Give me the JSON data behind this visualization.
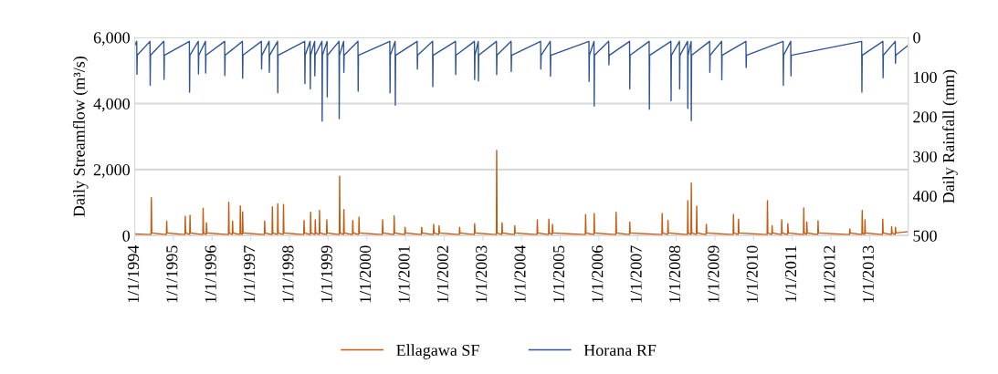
{
  "chart_data": {
    "type": "line",
    "xlabel": null,
    "ylabel": "Daily Streamflow (m³/s)",
    "y2label": "Daily Rainfall (mm)",
    "xlim": [
      "1994-01-01",
      "2013-12-31"
    ],
    "xticks": [
      {
        "value": "1994-01-01",
        "label": "1/1/1994"
      },
      {
        "value": "1995-01-01",
        "label": "1/1/1995"
      },
      {
        "value": "1996-01-01",
        "label": "1/1/1996"
      },
      {
        "value": "1997-01-01",
        "label": "1/1/1997"
      },
      {
        "value": "1998-01-01",
        "label": "1/1/1998"
      },
      {
        "value": "1999-01-01",
        "label": "1/1/1999"
      },
      {
        "value": "2000-01-01",
        "label": "1/1/2000"
      },
      {
        "value": "2001-01-01",
        "label": "1/1/2001"
      },
      {
        "value": "2002-01-01",
        "label": "1/1/2002"
      },
      {
        "value": "2003-01-01",
        "label": "1/1/2003"
      },
      {
        "value": "2004-01-01",
        "label": "1/1/2004"
      },
      {
        "value": "2005-01-01",
        "label": "1/1/2005"
      },
      {
        "value": "2006-01-01",
        "label": "1/1/2006"
      },
      {
        "value": "2007-01-01",
        "label": "1/1/2007"
      },
      {
        "value": "2008-01-01",
        "label": "1/1/2008"
      },
      {
        "value": "2009-01-01",
        "label": "1/1/2009"
      },
      {
        "value": "2010-01-01",
        "label": "1/1/2010"
      },
      {
        "value": "2011-01-01",
        "label": "1/1/2011"
      },
      {
        "value": "2012-01-01",
        "label": "1/1/2012"
      },
      {
        "value": "2013-01-01",
        "label": "1/1/2013"
      }
    ],
    "ylim": [
      0,
      6000
    ],
    "yticks": [
      0,
      {
        "value": 2000,
        "label": "2,000"
      },
      {
        "value": 4000,
        "label": "4,000"
      },
      {
        "value": 6000,
        "label": "6,000"
      }
    ],
    "y2lim": [
      500,
      0
    ],
    "y2ticks": [
      0,
      100,
      200,
      300,
      400,
      500
    ],
    "grid": "y",
    "legend": "bottom",
    "marker": "none",
    "line_style": "solid",
    "series": [
      {
        "name": "Ellagawa SF",
        "color": "#c55a11",
        "axis": "y",
        "x": [
          "1994-01-01",
          "1994-06-04",
          "1994-06-07",
          "1994-06-11",
          "1994-10-27",
          "1994-10-30",
          "1994-11-03",
          "1995-04-20",
          "1995-04-23",
          "1995-04-27",
          "1995-06-04",
          "1995-06-07",
          "1995-06-11",
          "1995-10-06",
          "1995-10-09",
          "1995-10-13",
          "1995-11-07",
          "1995-11-10",
          "1995-11-14",
          "1996-06-04",
          "1996-06-07",
          "1996-06-11",
          "1996-07-10",
          "1996-07-13",
          "1996-07-17",
          "1996-09-21",
          "1996-09-24",
          "1996-09-28",
          "1996-10-13",
          "1996-10-16",
          "1996-10-20",
          "1997-05-09",
          "1997-05-12",
          "1997-05-16",
          "1997-07-21",
          "1997-07-24",
          "1997-07-28",
          "1997-09-10",
          "1997-09-13",
          "1997-09-17",
          "1997-11-03",
          "1997-11-06",
          "1997-11-10",
          "1998-05-16",
          "1998-05-19",
          "1998-05-23",
          "1998-07-17",
          "1998-07-20",
          "1998-07-24",
          "1998-08-30",
          "1998-09-02",
          "1998-09-06",
          "1998-10-09",
          "1998-10-12",
          "1998-10-16",
          "1998-12-17",
          "1998-12-20",
          "1998-12-24",
          "1999-04-17",
          "1999-04-20",
          "1999-04-24",
          "1999-05-27",
          "1999-05-30",
          "1999-06-03",
          "1999-08-19",
          "1999-08-22",
          "1999-08-26",
          "1999-10-17",
          "1999-10-20",
          "1999-10-24",
          "2000-05-27",
          "2000-05-30",
          "2000-06-03",
          "2000-09-13",
          "2000-09-16",
          "2000-09-20",
          "2000-12-25",
          "2000-12-28",
          "2001-01-01",
          "2001-05-31",
          "2001-06-03",
          "2001-06-07",
          "2001-09-21",
          "2001-09-24",
          "2001-09-28",
          "2001-11-11",
          "2001-11-14",
          "2001-11-18",
          "2002-05-24",
          "2002-05-27",
          "2002-05-31",
          "2002-10-13",
          "2002-10-16",
          "2002-10-20",
          "2003-05-09",
          "2003-05-12",
          "2003-05-16",
          "2003-06-29",
          "2003-07-02",
          "2003-07-06",
          "2003-10-27",
          "2003-10-30",
          "2003-11-03",
          "2004-05-27",
          "2004-05-30",
          "2004-06-03",
          "2004-09-13",
          "2004-09-16",
          "2004-09-20",
          "2004-10-17",
          "2004-10-20",
          "2004-10-24",
          "2005-08-26",
          "2005-08-29",
          "2005-09-02",
          "2005-11-15",
          "2005-11-18",
          "2005-11-22",
          "2006-06-10",
          "2006-06-13",
          "2006-06-17",
          "2006-10-17",
          "2006-10-20",
          "2006-10-24",
          "2007-08-19",
          "2007-08-22",
          "2007-08-26",
          "2007-10-13",
          "2007-10-16",
          "2007-10-20",
          "2008-04-17",
          "2008-04-20",
          "2008-04-24",
          "2008-05-20",
          "2008-05-23",
          "2008-05-27",
          "2008-07-10",
          "2008-07-13",
          "2008-07-17",
          "2008-10-09",
          "2008-10-12",
          "2008-10-16",
          "2009-06-22",
          "2009-06-25",
          "2009-06-29",
          "2009-08-09",
          "2009-08-12",
          "2009-08-16",
          "2010-05-09",
          "2010-05-12",
          "2010-05-16",
          "2010-06-22",
          "2010-06-25",
          "2010-06-29",
          "2010-09-21",
          "2010-09-24",
          "2010-09-28",
          "2010-11-18",
          "2010-11-21",
          "2010-11-25",
          "2011-04-17",
          "2011-04-20",
          "2011-04-24",
          "2011-05-16",
          "2011-05-19",
          "2011-05-23",
          "2011-08-30",
          "2011-09-02",
          "2011-09-06",
          "2012-06-25",
          "2012-06-28",
          "2012-07-02",
          "2012-10-20",
          "2012-10-23",
          "2012-10-27",
          "2012-11-15",
          "2012-11-18",
          "2012-11-22",
          "2013-05-02",
          "2013-05-05",
          "2013-05-09",
          "2013-07-25",
          "2013-07-28",
          "2013-08-01",
          "2013-08-30",
          "2013-09-02",
          "2013-09-06",
          "2013-12-31"
        ],
        "values": [
          50,
          30,
          1150,
          80,
          30,
          440,
          80,
          30,
          580,
          80,
          30,
          620,
          80,
          30,
          830,
          80,
          30,
          390,
          80,
          30,
          1010,
          80,
          30,
          440,
          80,
          30,
          900,
          80,
          30,
          720,
          80,
          30,
          440,
          80,
          30,
          870,
          80,
          30,
          960,
          80,
          30,
          940,
          80,
          30,
          460,
          80,
          30,
          710,
          80,
          30,
          480,
          80,
          30,
          760,
          80,
          30,
          480,
          80,
          30,
          1800,
          80,
          30,
          790,
          80,
          30,
          460,
          80,
          30,
          560,
          80,
          30,
          480,
          80,
          30,
          600,
          80,
          30,
          250,
          80,
          30,
          250,
          80,
          30,
          340,
          80,
          30,
          300,
          80,
          30,
          250,
          80,
          30,
          360,
          80,
          30,
          2580,
          80,
          30,
          390,
          80,
          30,
          300,
          80,
          30,
          480,
          80,
          30,
          500,
          80,
          30,
          340,
          80,
          30,
          640,
          80,
          30,
          670,
          80,
          30,
          710,
          80,
          30,
          410,
          80,
          30,
          670,
          80,
          30,
          460,
          80,
          30,
          1060,
          80,
          30,
          1590,
          80,
          30,
          890,
          80,
          30,
          340,
          80,
          30,
          640,
          80,
          30,
          500,
          80,
          30,
          1060,
          80,
          30,
          300,
          80,
          30,
          480,
          80,
          30,
          360,
          80,
          30,
          840,
          80,
          30,
          410,
          80,
          30,
          450,
          80,
          30,
          200,
          80,
          30,
          760,
          80,
          30,
          480,
          80,
          30,
          500,
          80,
          30,
          270,
          80,
          30,
          250,
          80,
          120
        ]
      },
      {
        "name": "Horana RF",
        "color": "#2f5597",
        "axis": "y2",
        "x": [
          "1994-01-01",
          "1994-01-20",
          "1994-01-22",
          "1994-01-25",
          "1994-05-25",
          "1994-05-27",
          "1994-05-30",
          "1994-10-03",
          "1994-10-05",
          "1994-10-08",
          "1995-06-01",
          "1995-06-03",
          "1995-06-06",
          "1995-08-24",
          "1995-08-26",
          "1995-08-29",
          "1995-10-31",
          "1995-11-02",
          "1995-11-05",
          "1996-04-29",
          "1996-05-01",
          "1996-05-04",
          "1996-10-14",
          "1996-10-16",
          "1996-10-19",
          "1997-04-11",
          "1997-04-13",
          "1997-04-16",
          "1997-06-23",
          "1997-06-25",
          "1997-06-28",
          "1997-09-11",
          "1997-09-13",
          "1997-09-16",
          "1998-05-25",
          "1998-05-27",
          "1998-05-30",
          "1998-07-15",
          "1998-07-17",
          "1998-07-20",
          "1998-08-27",
          "1998-08-29",
          "1998-09-01",
          "1998-11-04",
          "1998-11-06",
          "1998-11-09",
          "1998-12-22",
          "1998-12-24",
          "1998-12-27",
          "1999-04-14",
          "1999-04-16",
          "1999-04-19",
          "1999-05-28",
          "1999-05-30",
          "1999-06-02",
          "1999-10-10",
          "1999-10-12",
          "1999-10-15",
          "2000-08-06",
          "2000-08-08",
          "2000-08-11",
          "2000-09-25",
          "2000-09-27",
          "2000-09-30",
          "2001-04-21",
          "2001-04-23",
          "2001-04-26",
          "2001-09-14",
          "2001-09-16",
          "2001-09-19",
          "2002-04-18",
          "2002-04-20",
          "2002-04-23",
          "2002-10-14",
          "2002-10-16",
          "2002-10-19",
          "2002-11-19",
          "2002-11-21",
          "2002-11-24",
          "2003-05-10",
          "2003-05-12",
          "2003-05-15",
          "2003-09-25",
          "2003-09-27",
          "2003-09-30",
          "2004-06-30",
          "2004-07-02",
          "2004-07-05",
          "2004-09-29",
          "2004-10-01",
          "2004-10-04",
          "2005-09-29",
          "2005-10-01",
          "2005-10-04",
          "2005-11-16",
          "2005-11-18",
          "2005-11-21",
          "2006-04-04",
          "2006-04-06",
          "2006-04-09",
          "2006-10-18",
          "2006-10-20",
          "2006-10-23",
          "2007-04-21",
          "2007-04-23",
          "2007-04-26",
          "2007-11-12",
          "2007-11-14",
          "2007-11-17",
          "2008-02-01",
          "2008-02-03",
          "2008-02-06",
          "2008-04-18",
          "2008-04-20",
          "2008-04-23",
          "2008-05-21",
          "2008-05-23",
          "2008-05-26",
          "2008-11-12",
          "2008-11-14",
          "2008-11-17",
          "2009-03-05",
          "2009-03-07",
          "2009-03-10",
          "2009-10-21",
          "2009-10-23",
          "2009-10-26",
          "2010-10-07",
          "2010-10-09",
          "2010-10-12",
          "2010-12-18",
          "2010-12-20",
          "2010-12-23",
          "2012-10-18",
          "2012-10-20",
          "2012-10-23",
          "2013-05-06",
          "2013-05-08",
          "2013-05-11",
          "2013-08-31",
          "2013-09-02",
          "2013-09-05",
          "2013-12-31"
        ],
        "values": [
          20,
          10,
          93,
          45,
          10,
          121,
          45,
          10,
          106,
          45,
          10,
          138,
          45,
          10,
          92,
          45,
          10,
          90,
          45,
          10,
          96,
          45,
          10,
          103,
          45,
          10,
          80,
          45,
          10,
          88,
          45,
          10,
          140,
          45,
          10,
          117,
          45,
          10,
          130,
          45,
          10,
          97,
          45,
          10,
          211,
          45,
          10,
          150,
          45,
          10,
          205,
          45,
          10,
          88,
          45,
          10,
          136,
          45,
          10,
          140,
          45,
          10,
          171,
          45,
          10,
          80,
          45,
          10,
          124,
          45,
          10,
          94,
          45,
          10,
          106,
          45,
          10,
          110,
          45,
          10,
          94,
          45,
          10,
          86,
          45,
          10,
          80,
          45,
          10,
          98,
          45,
          10,
          111,
          45,
          10,
          173,
          45,
          10,
          69,
          45,
          10,
          130,
          45,
          10,
          181,
          45,
          10,
          160,
          45,
          10,
          130,
          45,
          10,
          179,
          45,
          10,
          210,
          45,
          10,
          88,
          45,
          10,
          107,
          45,
          10,
          76,
          45,
          10,
          121,
          45,
          10,
          97,
          45,
          10,
          138,
          45,
          10,
          102,
          45,
          10,
          65,
          45,
          20
        ]
      }
    ]
  }
}
